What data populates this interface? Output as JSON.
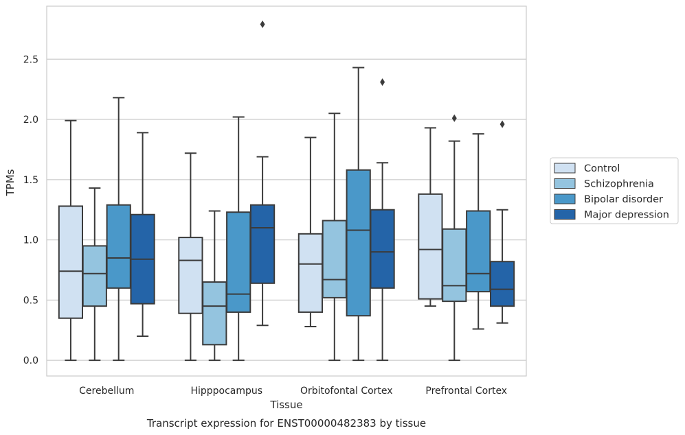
{
  "chart_data": {
    "type": "box",
    "title": "",
    "caption": "Transcript expression for ENST00000482383 by tissue",
    "xlabel": "Tissue",
    "ylabel": "TPMs",
    "ylim": [
      -0.13,
      2.94
    ],
    "yticks": [
      "0.0",
      "0.5",
      "1.0",
      "1.5",
      "2.0",
      "2.5"
    ],
    "grid": "horizontal",
    "legend_position": "right",
    "categories": [
      "Cerebellum",
      "Hipppocampus",
      "Orbitofontal Cortex",
      "Prefrontal Cortex"
    ],
    "series": [
      {
        "name": "Control",
        "color": "#d0e1f2",
        "boxes": [
          {
            "whisker_low": 0.0,
            "q1": 0.35,
            "median": 0.74,
            "q3": 1.28,
            "whisker_high": 1.99,
            "outliers": []
          },
          {
            "whisker_low": 0.0,
            "q1": 0.39,
            "median": 0.83,
            "q3": 1.02,
            "whisker_high": 1.72,
            "outliers": []
          },
          {
            "whisker_low": 0.28,
            "q1": 0.4,
            "median": 0.8,
            "q3": 1.05,
            "whisker_high": 1.85,
            "outliers": []
          },
          {
            "whisker_low": 0.45,
            "q1": 0.51,
            "median": 0.92,
            "q3": 1.38,
            "whisker_high": 1.93,
            "outliers": []
          }
        ]
      },
      {
        "name": "Schizophrenia",
        "color": "#94c4df",
        "boxes": [
          {
            "whisker_low": 0.0,
            "q1": 0.45,
            "median": 0.72,
            "q3": 0.95,
            "whisker_high": 1.43,
            "outliers": []
          },
          {
            "whisker_low": 0.0,
            "q1": 0.13,
            "median": 0.45,
            "q3": 0.65,
            "whisker_high": 1.24,
            "outliers": []
          },
          {
            "whisker_low": 0.0,
            "q1": 0.52,
            "median": 0.67,
            "q3": 1.16,
            "whisker_high": 2.05,
            "outliers": []
          },
          {
            "whisker_low": 0.0,
            "q1": 0.49,
            "median": 0.62,
            "q3": 1.09,
            "whisker_high": 1.82,
            "outliers": [
              2.01
            ]
          }
        ]
      },
      {
        "name": "Bipolar disorder",
        "color": "#4a98c9",
        "boxes": [
          {
            "whisker_low": 0.0,
            "q1": 0.6,
            "median": 0.85,
            "q3": 1.29,
            "whisker_high": 2.18,
            "outliers": []
          },
          {
            "whisker_low": 0.0,
            "q1": 0.4,
            "median": 0.55,
            "q3": 1.23,
            "whisker_high": 2.02,
            "outliers": []
          },
          {
            "whisker_low": 0.0,
            "q1": 0.37,
            "median": 1.08,
            "q3": 1.58,
            "whisker_high": 2.43,
            "outliers": []
          },
          {
            "whisker_low": 0.26,
            "q1": 0.57,
            "median": 0.72,
            "q3": 1.24,
            "whisker_high": 1.88,
            "outliers": []
          }
        ]
      },
      {
        "name": "Major depression",
        "color": "#2464a8",
        "boxes": [
          {
            "whisker_low": 0.2,
            "q1": 0.47,
            "median": 0.84,
            "q3": 1.21,
            "whisker_high": 1.89,
            "outliers": []
          },
          {
            "whisker_low": 0.29,
            "q1": 0.64,
            "median": 1.1,
            "q3": 1.29,
            "whisker_high": 1.69,
            "outliers": [
              2.79
            ]
          },
          {
            "whisker_low": 0.0,
            "q1": 0.6,
            "median": 0.9,
            "q3": 1.25,
            "whisker_high": 1.64,
            "outliers": [
              2.31
            ]
          },
          {
            "whisker_low": 0.31,
            "q1": 0.45,
            "median": 0.59,
            "q3": 0.82,
            "whisker_high": 1.25,
            "outliers": [
              1.96
            ]
          }
        ]
      }
    ]
  }
}
